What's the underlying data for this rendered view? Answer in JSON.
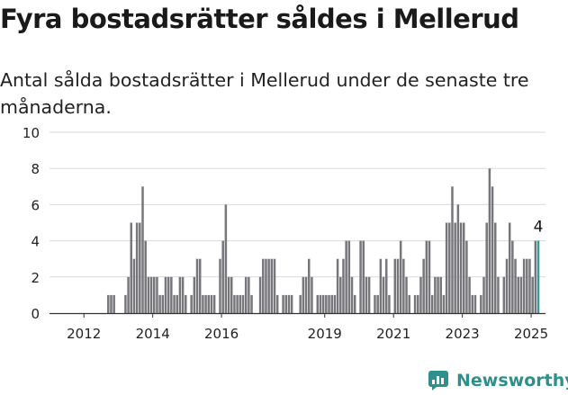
{
  "title": "Fyra bostadsrätter såldes i Mellerud",
  "subtitle": "Antal sålda bostadsrätter i Mellerud under de senaste tre månaderna.",
  "brand": {
    "name": "Newsworthy",
    "icon": "newsworthy-logo-icon"
  },
  "colors": {
    "bar": "#77767b",
    "highlight": "#2e9e9a",
    "grid": "#d9d9d9",
    "axis": "#333333",
    "brand": "#2e8f8c"
  },
  "chart_data": {
    "type": "bar",
    "x_start": "2011-01",
    "x_end": "2025-05",
    "grid": true,
    "ylim": [
      0,
      10
    ],
    "yticks": [
      0,
      2,
      4,
      6,
      8,
      10
    ],
    "xticks": [
      "2012",
      "2014",
      "2016",
      "2019",
      "2021",
      "2023",
      "2025"
    ],
    "xtick_months": [
      "2012-01",
      "2014-01",
      "2016-01",
      "2019-01",
      "2021-01",
      "2023-01",
      "2025-01"
    ],
    "highlight_month": "2025-03",
    "highlight_label": "4",
    "series": [
      {
        "values": [
          [
            "2012-09",
            1
          ],
          [
            "2012-10",
            1
          ],
          [
            "2012-11",
            1
          ],
          [
            "2013-03",
            1
          ],
          [
            "2013-04",
            2
          ],
          [
            "2013-05",
            5
          ],
          [
            "2013-06",
            3
          ],
          [
            "2013-07",
            5
          ],
          [
            "2013-08",
            5
          ],
          [
            "2013-09",
            7
          ],
          [
            "2013-10",
            4
          ],
          [
            "2013-11",
            2
          ],
          [
            "2013-12",
            2
          ],
          [
            "2014-01",
            2
          ],
          [
            "2014-02",
            2
          ],
          [
            "2014-03",
            1
          ],
          [
            "2014-04",
            1
          ],
          [
            "2014-05",
            2
          ],
          [
            "2014-06",
            2
          ],
          [
            "2014-07",
            2
          ],
          [
            "2014-08",
            1
          ],
          [
            "2014-09",
            1
          ],
          [
            "2014-10",
            2
          ],
          [
            "2014-11",
            2
          ],
          [
            "2014-12",
            1
          ],
          [
            "2015-02",
            1
          ],
          [
            "2015-03",
            2
          ],
          [
            "2015-04",
            3
          ],
          [
            "2015-05",
            3
          ],
          [
            "2015-06",
            1
          ],
          [
            "2015-07",
            1
          ],
          [
            "2015-08",
            1
          ],
          [
            "2015-09",
            1
          ],
          [
            "2015-10",
            1
          ],
          [
            "2015-12",
            3
          ],
          [
            "2016-01",
            4
          ],
          [
            "2016-02",
            6
          ],
          [
            "2016-03",
            2
          ],
          [
            "2016-04",
            2
          ],
          [
            "2016-05",
            1
          ],
          [
            "2016-06",
            1
          ],
          [
            "2016-07",
            1
          ],
          [
            "2016-08",
            1
          ],
          [
            "2016-09",
            2
          ],
          [
            "2016-10",
            2
          ],
          [
            "2016-11",
            1
          ],
          [
            "2017-02",
            2
          ],
          [
            "2017-03",
            3
          ],
          [
            "2017-04",
            3
          ],
          [
            "2017-05",
            3
          ],
          [
            "2017-06",
            3
          ],
          [
            "2017-07",
            3
          ],
          [
            "2017-08",
            1
          ],
          [
            "2017-10",
            1
          ],
          [
            "2017-11",
            1
          ],
          [
            "2017-12",
            1
          ],
          [
            "2018-01",
            1
          ],
          [
            "2018-04",
            1
          ],
          [
            "2018-05",
            2
          ],
          [
            "2018-06",
            2
          ],
          [
            "2018-07",
            3
          ],
          [
            "2018-08",
            2
          ],
          [
            "2018-10",
            1
          ],
          [
            "2018-11",
            1
          ],
          [
            "2018-12",
            1
          ],
          [
            "2019-01",
            1
          ],
          [
            "2019-02",
            1
          ],
          [
            "2019-03",
            1
          ],
          [
            "2019-04",
            1
          ],
          [
            "2019-05",
            3
          ],
          [
            "2019-06",
            2
          ],
          [
            "2019-07",
            3
          ],
          [
            "2019-08",
            4
          ],
          [
            "2019-09",
            4
          ],
          [
            "2019-10",
            2
          ],
          [
            "2019-11",
            1
          ],
          [
            "2020-01",
            4
          ],
          [
            "2020-02",
            4
          ],
          [
            "2020-03",
            2
          ],
          [
            "2020-04",
            2
          ],
          [
            "2020-06",
            1
          ],
          [
            "2020-07",
            1
          ],
          [
            "2020-08",
            3
          ],
          [
            "2020-09",
            2
          ],
          [
            "2020-10",
            3
          ],
          [
            "2020-11",
            1
          ],
          [
            "2021-01",
            3
          ],
          [
            "2021-02",
            3
          ],
          [
            "2021-03",
            4
          ],
          [
            "2021-04",
            3
          ],
          [
            "2021-05",
            2
          ],
          [
            "2021-06",
            1
          ],
          [
            "2021-08",
            1
          ],
          [
            "2021-09",
            1
          ],
          [
            "2021-10",
            2
          ],
          [
            "2021-11",
            3
          ],
          [
            "2021-12",
            4
          ],
          [
            "2022-01",
            4
          ],
          [
            "2022-02",
            1
          ],
          [
            "2022-03",
            2
          ],
          [
            "2022-04",
            2
          ],
          [
            "2022-05",
            2
          ],
          [
            "2022-06",
            1
          ],
          [
            "2022-07",
            5
          ],
          [
            "2022-08",
            5
          ],
          [
            "2022-09",
            7
          ],
          [
            "2022-10",
            5
          ],
          [
            "2022-11",
            6
          ],
          [
            "2022-12",
            5
          ],
          [
            "2023-01",
            5
          ],
          [
            "2023-02",
            4
          ],
          [
            "2023-03",
            2
          ],
          [
            "2023-04",
            1
          ],
          [
            "2023-05",
            1
          ],
          [
            "2023-07",
            1
          ],
          [
            "2023-08",
            2
          ],
          [
            "2023-09",
            5
          ],
          [
            "2023-10",
            8
          ],
          [
            "2023-11",
            7
          ],
          [
            "2023-12",
            5
          ],
          [
            "2024-01",
            2
          ],
          [
            "2024-03",
            2
          ],
          [
            "2024-04",
            3
          ],
          [
            "2024-05",
            5
          ],
          [
            "2024-06",
            4
          ],
          [
            "2024-07",
            3
          ],
          [
            "2024-08",
            2
          ],
          [
            "2024-09",
            2
          ],
          [
            "2024-10",
            3
          ],
          [
            "2024-11",
            3
          ],
          [
            "2024-12",
            3
          ],
          [
            "2025-01",
            2
          ],
          [
            "2025-02",
            4
          ],
          [
            "2025-03",
            4
          ]
        ]
      }
    ]
  }
}
